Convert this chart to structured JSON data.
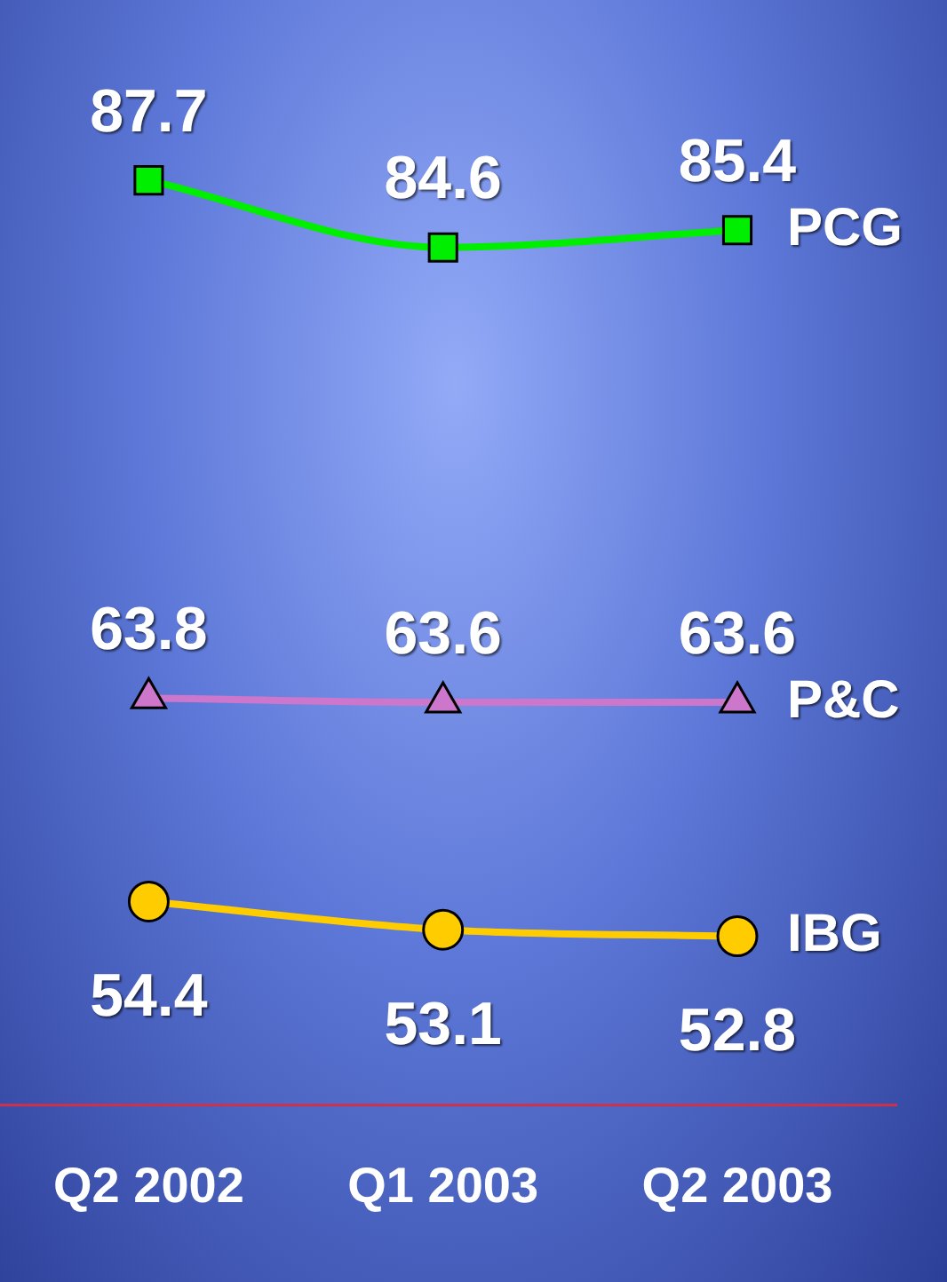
{
  "chart_data": {
    "type": "line",
    "categories": [
      "Q2 2002",
      "Q1 2003",
      "Q2 2003"
    ],
    "series": [
      {
        "name": "PCG",
        "color": "#00ee00",
        "marker": "square",
        "values": [
          87.7,
          84.6,
          85.4
        ]
      },
      {
        "name": "P&C",
        "color": "#cc77cc",
        "marker": "triangle",
        "values": [
          63.8,
          63.6,
          63.6
        ]
      },
      {
        "name": "IBG",
        "color": "#ffcc00",
        "marker": "circle",
        "values": [
          54.4,
          53.1,
          52.8
        ]
      }
    ],
    "data_labels": true,
    "legend": false,
    "grid": false,
    "tick_labels": "x"
  }
}
